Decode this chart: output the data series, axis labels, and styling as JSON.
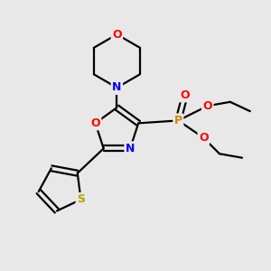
{
  "background_color": "#e8e8e8",
  "atom_colors": {
    "C": "#000000",
    "N": "#0000ff",
    "O": "#ff0000",
    "S": "#b8a000",
    "P": "#cc8800"
  },
  "bond_color": "#000000",
  "figsize": [
    3.0,
    3.0
  ],
  "dpi": 100
}
